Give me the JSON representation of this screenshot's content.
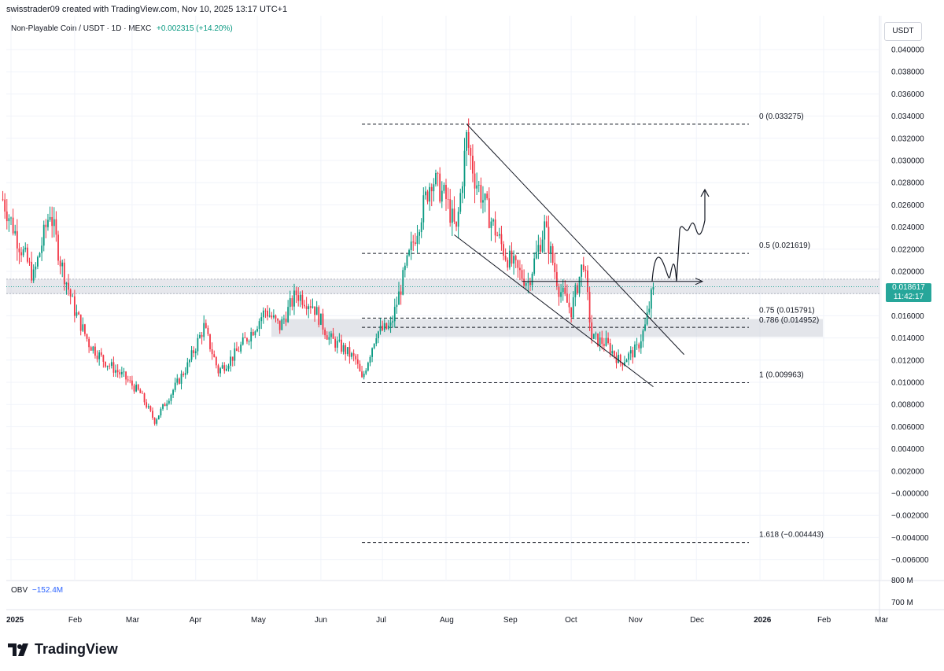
{
  "header": {
    "attribution": "swisstrader09 created with TradingView.com, Nov 10, 2025 13:17 UTC+1",
    "symbol_line": "Non-Playable Coin / USDT · 1D · MEXC",
    "change": "+0.002315 (+14.20%)"
  },
  "currency_button": "USDT",
  "price_tag": {
    "price": "0.018617",
    "countdown": "11:42:17",
    "color": "#26a69a"
  },
  "obv": {
    "label": "OBV",
    "value": "−152.4M"
  },
  "brand": "TradingView",
  "colors": {
    "up": "#089981",
    "down": "#f23645",
    "grid": "#eef0f3"
  },
  "chart_data": {
    "type": "candlestick",
    "y_ticks": [
      "0.040000",
      "0.038000",
      "0.036000",
      "0.034000",
      "0.032000",
      "0.030000",
      "0.028000",
      "0.026000",
      "0.024000",
      "0.022000",
      "0.020000",
      "0.018000",
      "0.016000",
      "0.014000",
      "0.012000",
      "0.010000",
      "0.008000",
      "0.006000",
      "0.004000",
      "0.002000",
      "−0.000000",
      "−0.002000",
      "−0.004000",
      "−0.006000"
    ],
    "obv_ticks": [
      "800 M",
      "700 M"
    ],
    "x_ticks": [
      {
        "label": "2025",
        "date": "2025-01-01"
      },
      {
        "label": "Feb",
        "date": "2025-02-01"
      },
      {
        "label": "Mar",
        "date": "2025-03-01"
      },
      {
        "label": "Apr",
        "date": "2025-04-01"
      },
      {
        "label": "May",
        "date": "2025-05-01"
      },
      {
        "label": "Jun",
        "date": "2025-06-01"
      },
      {
        "label": "Jul",
        "date": "2025-07-01"
      },
      {
        "label": "Aug",
        "date": "2025-08-01"
      },
      {
        "label": "Sep",
        "date": "2025-09-01"
      },
      {
        "label": "Oct",
        "date": "2025-10-01"
      },
      {
        "label": "Nov",
        "date": "2025-11-01"
      },
      {
        "label": "Dec",
        "date": "2025-12-01"
      },
      {
        "label": "2026",
        "date": "2026-01-01"
      },
      {
        "label": "Feb",
        "date": "2026-02-01"
      },
      {
        "label": "Mar",
        "date": "2026-03-01"
      }
    ],
    "price_path": [
      {
        "date": "2024-12-28",
        "price": 0.0265
      },
      {
        "date": "2025-01-05",
        "price": 0.0225
      },
      {
        "date": "2025-01-12",
        "price": 0.0195
      },
      {
        "date": "2025-01-20",
        "price": 0.0255
      },
      {
        "date": "2025-01-25",
        "price": 0.021
      },
      {
        "date": "2025-02-01",
        "price": 0.0165
      },
      {
        "date": "2025-02-08",
        "price": 0.0135
      },
      {
        "date": "2025-02-15",
        "price": 0.012
      },
      {
        "date": "2025-02-25",
        "price": 0.0105
      },
      {
        "date": "2025-03-05",
        "price": 0.009
      },
      {
        "date": "2025-03-12",
        "price": 0.0065
      },
      {
        "date": "2025-03-20",
        "price": 0.009
      },
      {
        "date": "2025-03-28",
        "price": 0.0115
      },
      {
        "date": "2025-04-05",
        "price": 0.015
      },
      {
        "date": "2025-04-12",
        "price": 0.011
      },
      {
        "date": "2025-04-20",
        "price": 0.0125
      },
      {
        "date": "2025-04-28",
        "price": 0.0145
      },
      {
        "date": "2025-05-05",
        "price": 0.0165
      },
      {
        "date": "2025-05-12",
        "price": 0.015
      },
      {
        "date": "2025-05-20",
        "price": 0.018
      },
      {
        "date": "2025-05-28",
        "price": 0.017
      },
      {
        "date": "2025-06-05",
        "price": 0.014
      },
      {
        "date": "2025-06-12",
        "price": 0.013
      },
      {
        "date": "2025-06-18",
        "price": 0.012
      },
      {
        "date": "2025-06-21",
        "price": 0.0102
      },
      {
        "date": "2025-06-28",
        "price": 0.0145
      },
      {
        "date": "2025-07-05",
        "price": 0.015
      },
      {
        "date": "2025-07-12",
        "price": 0.02
      },
      {
        "date": "2025-07-18",
        "price": 0.024
      },
      {
        "date": "2025-07-25",
        "price": 0.0285
      },
      {
        "date": "2025-08-01",
        "price": 0.0265
      },
      {
        "date": "2025-08-06",
        "price": 0.0235
      },
      {
        "date": "2025-08-11",
        "price": 0.032
      },
      {
        "date": "2025-08-15",
        "price": 0.0285
      },
      {
        "date": "2025-08-22",
        "price": 0.025
      },
      {
        "date": "2025-08-30",
        "price": 0.0215
      },
      {
        "date": "2025-09-05",
        "price": 0.02
      },
      {
        "date": "2025-09-10",
        "price": 0.019
      },
      {
        "date": "2025-09-18",
        "price": 0.024
      },
      {
        "date": "2025-09-25",
        "price": 0.0185
      },
      {
        "date": "2025-10-01",
        "price": 0.0165
      },
      {
        "date": "2025-10-07",
        "price": 0.021
      },
      {
        "date": "2025-10-11",
        "price": 0.014
      },
      {
        "date": "2025-10-18",
        "price": 0.0135
      },
      {
        "date": "2025-10-25",
        "price": 0.0118
      },
      {
        "date": "2025-11-02",
        "price": 0.013
      },
      {
        "date": "2025-11-06",
        "price": 0.015
      },
      {
        "date": "2025-11-10",
        "price": 0.0186
      }
    ],
    "last_price": 0.018617,
    "fib_levels": [
      {
        "ratio": "0",
        "label": "0 (0.033275)",
        "value": 0.033275
      },
      {
        "ratio": "0.5",
        "label": "0.5 (0.021619)",
        "value": 0.021619
      },
      {
        "ratio": "0.75",
        "label": "0.75 (0.015791)",
        "value": 0.015791
      },
      {
        "ratio": "0.786",
        "label": "0.786 (0.014952)",
        "value": 0.014952
      },
      {
        "ratio": "1",
        "label": "1 (0.009963)",
        "value": 0.009963
      },
      {
        "ratio": "1.618",
        "label": "1.618 (−0.004443)",
        "value": -0.004443
      }
    ],
    "zones": [
      {
        "from": 0.018,
        "to": 0.0193,
        "scope": "full"
      },
      {
        "from": 0.0141,
        "to": 0.0157,
        "scope": "fib"
      }
    ],
    "channel": {
      "upper": [
        {
          "date": "2025-08-11",
          "price": 0.0333
        },
        {
          "date": "2025-11-25",
          "price": 0.0125
        }
      ],
      "lower": [
        {
          "date": "2025-08-05",
          "price": 0.0233
        },
        {
          "date": "2025-11-10",
          "price": 0.0096
        }
      ]
    }
  }
}
